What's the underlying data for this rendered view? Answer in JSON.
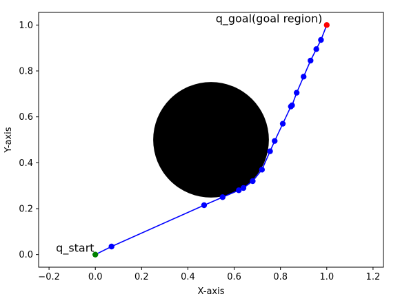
{
  "chart_data": {
    "type": "scatter",
    "title": "",
    "xlabel": "X-axis",
    "ylabel": "Y-axis",
    "xlim": [
      -0.245,
      1.245
    ],
    "ylim": [
      -0.055,
      1.055
    ],
    "xticks": [
      -0.2,
      0.0,
      0.2,
      0.4,
      0.6,
      0.8,
      1.0,
      1.2
    ],
    "xtick_labels": [
      "−0.2",
      "0.0",
      "0.2",
      "0.4",
      "0.6",
      "0.8",
      "1.0",
      "1.2"
    ],
    "yticks": [
      0.0,
      0.2,
      0.4,
      0.6,
      0.8,
      1.0
    ],
    "ytick_labels": [
      "0.0",
      "0.2",
      "0.4",
      "0.6",
      "0.8",
      "1.0"
    ],
    "grid": false,
    "obstacle": {
      "center": [
        0.5,
        0.5
      ],
      "radius": 0.25,
      "color": "#000000"
    },
    "path": {
      "color": "#0000ff",
      "x": [
        0.0,
        0.07,
        0.47,
        0.55,
        0.62,
        0.64,
        0.68,
        0.72,
        0.755,
        0.775,
        0.81,
        0.845,
        0.85,
        0.87,
        0.9,
        0.93,
        0.955,
        0.975,
        1.0
      ],
      "y": [
        0.0,
        0.035,
        0.215,
        0.25,
        0.28,
        0.29,
        0.32,
        0.37,
        0.45,
        0.495,
        0.57,
        0.645,
        0.65,
        0.705,
        0.775,
        0.845,
        0.895,
        0.935,
        1.0
      ]
    },
    "start": {
      "x": 0.0,
      "y": 0.0,
      "color": "#008000",
      "label": "q_start"
    },
    "goal": {
      "x": 1.0,
      "y": 1.0,
      "color": "#ff0000",
      "label": "q_goal(goal region)"
    }
  }
}
